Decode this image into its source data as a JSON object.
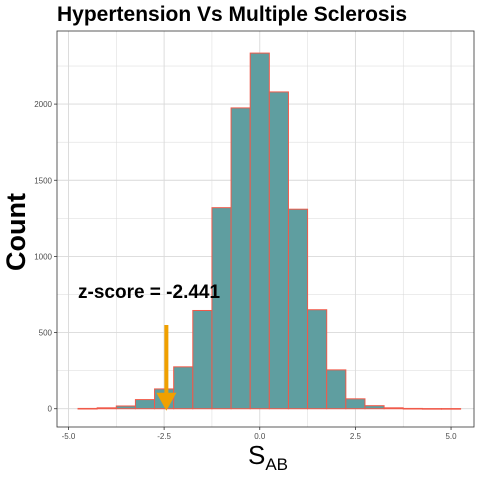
{
  "chart_data": {
    "type": "bar",
    "title": "Hypertension Vs Multiple Sclerosis",
    "xlabel": "S",
    "xlabel_subscript": "AB",
    "ylabel": "Count",
    "bin_width": 0.5,
    "bins": [
      {
        "center": -4.5,
        "count": 2
      },
      {
        "center": -4.0,
        "count": 6
      },
      {
        "center": -3.5,
        "count": 18
      },
      {
        "center": -3.0,
        "count": 60
      },
      {
        "center": -2.5,
        "count": 130
      },
      {
        "center": -2.0,
        "count": 275
      },
      {
        "center": -1.5,
        "count": 645
      },
      {
        "center": -1.0,
        "count": 1320
      },
      {
        "center": -0.5,
        "count": 1975
      },
      {
        "center": 0.0,
        "count": 2335
      },
      {
        "center": 0.5,
        "count": 2080
      },
      {
        "center": 1.0,
        "count": 1310
      },
      {
        "center": 1.5,
        "count": 650
      },
      {
        "center": 2.0,
        "count": 255
      },
      {
        "center": 2.5,
        "count": 65
      },
      {
        "center": 3.0,
        "count": 20
      },
      {
        "center": 3.5,
        "count": 6
      },
      {
        "center": 4.0,
        "count": 2
      },
      {
        "center": 4.5,
        "count": 1
      },
      {
        "center": 5.0,
        "count": 1
      }
    ],
    "xlim": [
      -5.3,
      5.6
    ],
    "ylim": [
      -120,
      2480
    ],
    "x_ticks": [
      {
        "value": -5,
        "label": "-5.0"
      },
      {
        "value": -2.5,
        "label": "-2.5"
      },
      {
        "value": 0,
        "label": "0.0"
      },
      {
        "value": 2.5,
        "label": "2.5"
      },
      {
        "value": 5,
        "label": "5.0"
      }
    ],
    "y_ticks": [
      {
        "value": 0,
        "label": "0"
      },
      {
        "value": 500,
        "label": "500"
      },
      {
        "value": 1000,
        "label": "1000"
      },
      {
        "value": 1500,
        "label": "1500"
      },
      {
        "value": 2000,
        "label": "2000"
      }
    ],
    "annotation": {
      "text": "z-score = -2.441",
      "arrow_x": -2.441,
      "arrow_from_y": 550,
      "arrow_to_y": 0
    },
    "grid": true,
    "colors": {
      "bar_fill": "#5f9ea0",
      "bar_stroke": "#f05a4a",
      "arrow": "#f0a000",
      "grid": "#d9d9d9",
      "panel_border": "#333333"
    }
  }
}
